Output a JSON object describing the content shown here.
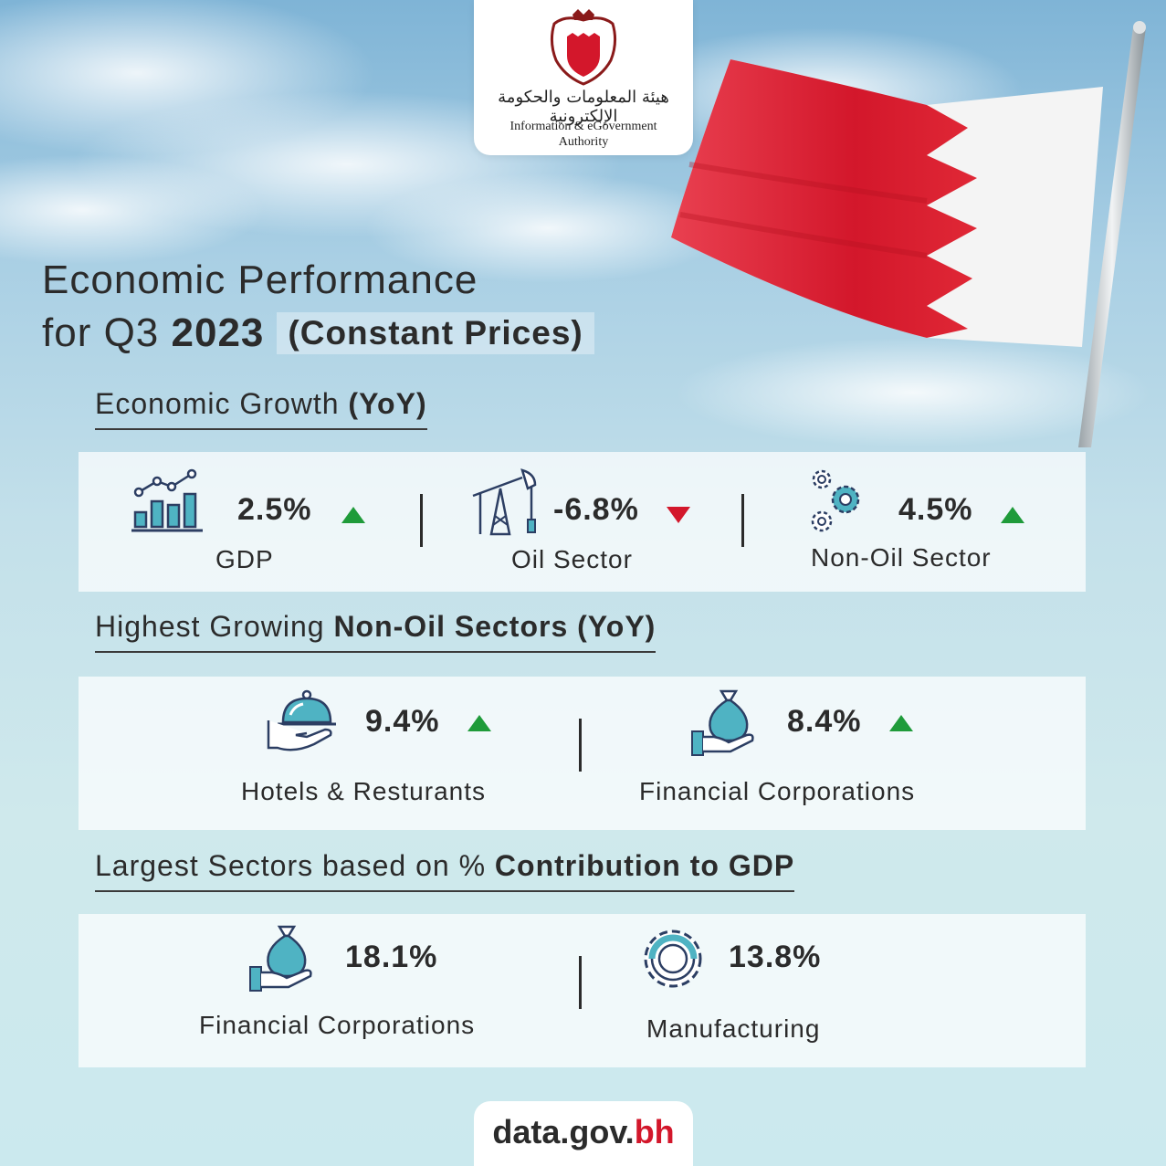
{
  "logo": {
    "arabic_name": "هيئة المعلومات والحكومة الإلكترونية",
    "english_line1": "Information & eGovernment",
    "english_line2": "Authority"
  },
  "title": {
    "line1": "Economic Performance",
    "line2_prefix": "for Q3",
    "line2_year": "2023",
    "subtitle": "(Constant Prices)"
  },
  "section_growth": {
    "heading_regular": "Economic Growth",
    "heading_bold": "(YoY)",
    "items": [
      {
        "icon": "bar-chart-icon",
        "value": "2.5%",
        "trend": "up",
        "label": "GDP"
      },
      {
        "icon": "oil-pump-icon",
        "value": "-6.8%",
        "trend": "down",
        "label": "Oil Sector"
      },
      {
        "icon": "gears-icon",
        "value": "4.5%",
        "trend": "up",
        "label": "Non-Oil Sector"
      }
    ]
  },
  "section_highest": {
    "heading_regular": "Highest Growing",
    "heading_bold": "Non-Oil Sectors (YoY)",
    "items": [
      {
        "icon": "cloche-icon",
        "value": "9.4%",
        "trend": "up",
        "label": "Hotels & Resturants"
      },
      {
        "icon": "money-bag-hand-icon",
        "value": "8.4%",
        "trend": "up",
        "label": "Financial Corporations"
      }
    ]
  },
  "section_largest": {
    "heading_regular": "Largest Sectors based on %",
    "heading_bold": "Contribution to GDP",
    "items": [
      {
        "icon": "money-bag-hand-icon",
        "value": "18.1%",
        "label": "Financial Corporations"
      },
      {
        "icon": "gear-icon",
        "value": "13.8%",
        "label": "Manufacturing"
      }
    ]
  },
  "footer": {
    "domain_main": "data.gov.",
    "domain_suffix": "bh"
  },
  "colors": {
    "up": "#1f9b3a",
    "down": "#d3172b",
    "flag_red": "#d3172b",
    "icon_teal": "#4fb3c3",
    "icon_navy": "#2c3e63"
  }
}
